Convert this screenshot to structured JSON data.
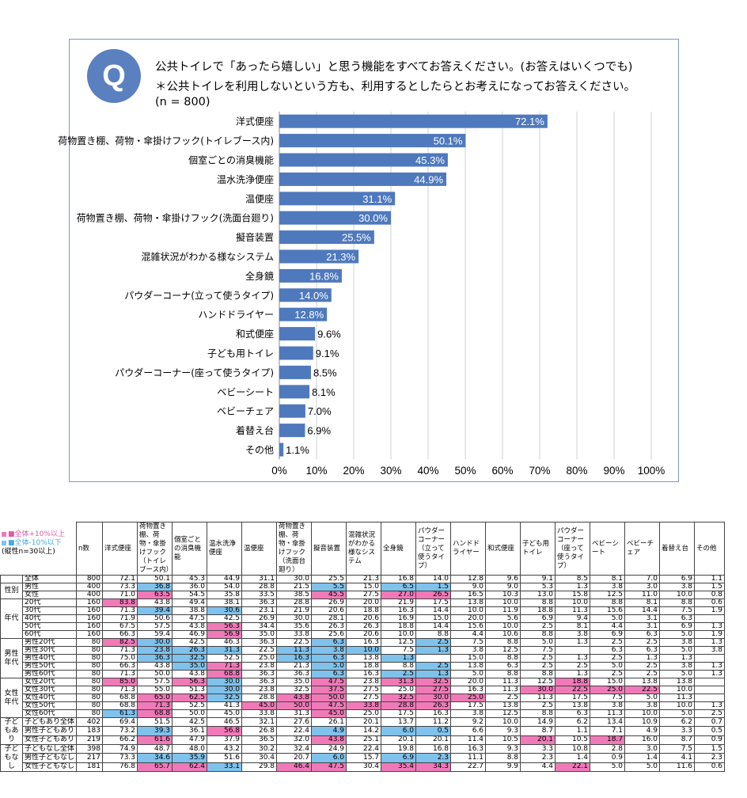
{
  "question": {
    "badge": "Q",
    "line1": "公共トイレで「あったら嬉しい」と思う機能をすべてお答えください。(お答えはいくつでも)",
    "line2": "＊公共トイレを利用しないという方も、利用するとしたらとお考えになってお答えください。",
    "line3": "(n = 800)"
  },
  "chart_data": {
    "type": "bar",
    "orientation": "horizontal",
    "categories": [
      "洋式便座",
      "荷物置き棚、荷物・傘掛けフック(トイレブース内)",
      "個室ごとの消臭機能",
      "温水洗浄便座",
      "温便座",
      "荷物置き棚、荷物・傘掛けフック(洗面台廻り)",
      "擬音装置",
      "混雑状況がわかる様なシステム",
      "全身鏡",
      "パウダーコーナ(立って使うタイプ)",
      "ハンドドライヤー",
      "和式便座",
      "子ども用トイレ",
      "パウダーコーナー(座って使うタイプ)",
      "ベビーシート",
      "ベビーチェア",
      "着替え台",
      "その他"
    ],
    "values": [
      72.1,
      50.1,
      45.3,
      44.9,
      31.1,
      30.0,
      25.5,
      21.3,
      16.8,
      14.0,
      12.8,
      9.6,
      9.1,
      8.5,
      8.1,
      7.0,
      6.9,
      1.1
    ],
    "value_labels": [
      "72.1%",
      "50.1%",
      "45.3%",
      "44.9%",
      "31.1%",
      "30.0%",
      "25.5%",
      "21.3%",
      "16.8%",
      "14.0%",
      "12.8%",
      "9.6%",
      "9.1%",
      "8.5%",
      "8.1%",
      "7.0%",
      "6.9%",
      "1.1%"
    ],
    "xlim": [
      0,
      100
    ],
    "xticks": [
      "0%",
      "10%",
      "20%",
      "30%",
      "40%",
      "50%",
      "60%",
      "70%",
      "80%",
      "90%",
      "100%"
    ],
    "bar_color": "#4f79bd",
    "grid": true
  },
  "table": {
    "legend": [
      "■全体+10%以上",
      "■全体-10%以下",
      "(縦性n=30以上)"
    ],
    "legend_colors": [
      "#f07ab8",
      "#7fc2ec"
    ],
    "headers": [
      "n数",
      "洋式便座",
      "荷物置き棚、荷物・傘掛けフック（トイレブース内）",
      "個室ごとの消臭機能",
      "温水洗浄便座",
      "温便座",
      "荷物置き棚、荷物・傘掛けフック（洗面台廻り）",
      "擬音装置",
      "混雑状況がわかる様なシステム",
      "全身鏡",
      "パウダーコーナー（立って使うタイプ）",
      "ハンドドライヤー",
      "和式便座",
      "子ども用トイレ",
      "パウダーコーナー（座って使うタイプ）",
      "ベビーシート",
      "ベビーチェア",
      "着替え台",
      "その他"
    ],
    "rows": [
      {
        "group": "",
        "label": "全体",
        "cells": [
          "800",
          "72.1",
          "50.1",
          "45.3",
          "44.9",
          "31.1",
          "30.0",
          "25.5",
          "21.3",
          "16.8",
          "14.0",
          "12.8",
          "9.6",
          "9.1",
          "8.5",
          "8.1",
          "7.0",
          "6.9",
          "1.1"
        ],
        "hl": {}
      },
      {
        "group": "性別",
        "label": "男性",
        "cells": [
          "400",
          "73.3",
          "36.8",
          "36.0",
          "54.0",
          "28.8",
          "21.5",
          "5.5",
          "15.0",
          "6.5",
          "1.5",
          "9.0",
          "9.0",
          "5.3",
          "1.3",
          "3.8",
          "3.0",
          "3.8",
          "1.5"
        ],
        "hl": {
          "2": "lo",
          "7": "lo",
          "9": "lo",
          "10": "lo"
        }
      },
      {
        "group": "",
        "label": "女性",
        "cells": [
          "400",
          "71.0",
          "63.5",
          "54.5",
          "35.8",
          "33.5",
          "38.5",
          "45.5",
          "27.5",
          "27.0",
          "26.5",
          "16.5",
          "10.3",
          "13.0",
          "15.8",
          "12.5",
          "11.0",
          "10.0",
          "0.8"
        ],
        "hl": {
          "2": "hi",
          "7": "hi",
          "9": "hi",
          "10": "hi"
        }
      },
      {
        "group": "年代",
        "label": "20代",
        "cells": [
          "160",
          "83.8",
          "43.8",
          "49.4",
          "38.1",
          "36.3",
          "28.8",
          "26.9",
          "20.0",
          "21.9",
          "17.5",
          "13.8",
          "10.0",
          "8.8",
          "10.0",
          "8.8",
          "8.1",
          "8.8",
          "0.6"
        ],
        "hl": {
          "1": "hi"
        }
      },
      {
        "group": "",
        "label": "30代",
        "cells": [
          "160",
          "71.3",
          "39.4",
          "38.8",
          "30.6",
          "23.1",
          "21.9",
          "20.6",
          "18.8",
          "16.3",
          "14.4",
          "10.0",
          "11.9",
          "18.8",
          "11.3",
          "15.6",
          "14.4",
          "7.5",
          "1.9"
        ],
        "hl": {
          "2": "lo",
          "4": "lo"
        }
      },
      {
        "group": "",
        "label": "40代",
        "cells": [
          "160",
          "71.9",
          "50.6",
          "47.5",
          "42.5",
          "26.9",
          "30.0",
          "28.1",
          "20.6",
          "16.9",
          "15.0",
          "20.0",
          "5.6",
          "6.9",
          "9.4",
          "5.0",
          "3.1",
          "6.3",
          ""
        ],
        "hl": {}
      },
      {
        "group": "",
        "label": "50代",
        "cells": [
          "160",
          "67.5",
          "57.5",
          "43.8",
          "56.3",
          "34.4",
          "35.6",
          "26.3",
          "26.3",
          "18.8",
          "14.4",
          "15.6",
          "10.0",
          "2.5",
          "8.1",
          "4.4",
          "3.1",
          "6.9",
          "1.3"
        ],
        "hl": {
          "4": "hi"
        }
      },
      {
        "group": "",
        "label": "60代",
        "cells": [
          "160",
          "66.3",
          "59.4",
          "46.9",
          "56.9",
          "35.0",
          "33.8",
          "25.6",
          "20.6",
          "10.0",
          "8.8",
          "4.4",
          "10.6",
          "8.8",
          "3.8",
          "6.9",
          "6.3",
          "5.0",
          "1.9"
        ],
        "hl": {
          "4": "hi"
        }
      },
      {
        "group": "男性年代",
        "label": "男性20代",
        "cells": [
          "80",
          "82.5",
          "30.0",
          "42.5",
          "46.3",
          "36.3",
          "22.5",
          "6.3",
          "16.3",
          "12.5",
          "2.5",
          "7.5",
          "8.8",
          "5.0",
          "1.3",
          "2.5",
          "2.5",
          "3.8",
          "1.3"
        ],
        "hl": {
          "1": "hi",
          "2": "lo",
          "7": "lo",
          "10": "lo"
        }
      },
      {
        "group": "",
        "label": "男性30代",
        "cells": [
          "80",
          "71.3",
          "23.8",
          "26.3",
          "31.3",
          "22.5",
          "11.3",
          "3.8",
          "10.0",
          "7.5",
          "1.3",
          "3.8",
          "12.5",
          "7.5",
          "",
          "6.3",
          "6.3",
          "5.0",
          "3.8"
        ],
        "hl": {
          "2": "lo",
          "3": "lo",
          "4": "lo",
          "6": "lo",
          "7": "lo",
          "8": "lo",
          "10": "lo"
        }
      },
      {
        "group": "",
        "label": "男性40代",
        "cells": [
          "80",
          "75.0",
          "36.3",
          "32.5",
          "52.5",
          "25.0",
          "16.3",
          "6.3",
          "13.8",
          "1.3",
          "",
          "15.0",
          "8.8",
          "2.5",
          "1.3",
          "2.5",
          "1.3",
          "1.3",
          ""
        ],
        "hl": {
          "2": "lo",
          "3": "lo",
          "6": "lo",
          "7": "lo",
          "9": "lo"
        }
      },
      {
        "group": "",
        "label": "男性50代",
        "cells": [
          "80",
          "66.3",
          "43.8",
          "35.0",
          "71.3",
          "23.8",
          "21.3",
          "5.0",
          "18.8",
          "8.8",
          "2.5",
          "13.8",
          "6.3",
          "2.5",
          "2.5",
          "5.0",
          "2.5",
          "3.8",
          "1.3"
        ],
        "hl": {
          "3": "lo",
          "4": "hi",
          "7": "lo",
          "10": "lo"
        }
      },
      {
        "group": "",
        "label": "男性60代",
        "cells": [
          "80",
          "71.3",
          "50.0",
          "43.8",
          "68.8",
          "36.3",
          "36.3",
          "6.3",
          "16.3",
          "2.5",
          "1.3",
          "5.0",
          "8.8",
          "8.8",
          "1.3",
          "2.5",
          "2.5",
          "5.0",
          "1.3"
        ],
        "hl": {
          "4": "hi",
          "7": "lo",
          "9": "lo",
          "10": "lo"
        }
      },
      {
        "group": "女性年代",
        "label": "女性20代",
        "cells": [
          "80",
          "85.0",
          "57.5",
          "56.3",
          "30.0",
          "36.3",
          "35.0",
          "47.5",
          "23.8",
          "31.3",
          "32.5",
          "20.0",
          "11.3",
          "12.5",
          "18.8",
          "15.0",
          "13.8",
          "13.8",
          ""
        ],
        "hl": {
          "1": "hi",
          "3": "hi",
          "4": "lo",
          "7": "hi",
          "9": "hi",
          "10": "hi",
          "14": "hi"
        }
      },
      {
        "group": "",
        "label": "女性30代",
        "cells": [
          "80",
          "71.3",
          "55.0",
          "51.3",
          "30.0",
          "23.8",
          "32.5",
          "37.5",
          "27.5",
          "25.0",
          "27.5",
          "16.3",
          "11.3",
          "30.0",
          "22.5",
          "25.0",
          "22.5",
          "10.0",
          ""
        ],
        "hl": {
          "4": "lo",
          "7": "hi",
          "10": "hi",
          "13": "hi",
          "14": "hi",
          "15": "hi",
          "16": "hi"
        }
      },
      {
        "group": "",
        "label": "女性40代",
        "cells": [
          "80",
          "68.8",
          "65.0",
          "62.5",
          "32.5",
          "28.8",
          "43.8",
          "50.0",
          "27.5",
          "32.5",
          "30.0",
          "25.0",
          "2.5",
          "11.3",
          "17.5",
          "7.5",
          "5.0",
          "11.3",
          ""
        ],
        "hl": {
          "2": "hi",
          "3": "hi",
          "4": "lo",
          "6": "hi",
          "7": "hi",
          "9": "hi",
          "10": "hi",
          "11": "hi"
        }
      },
      {
        "group": "",
        "label": "女性50代",
        "cells": [
          "80",
          "68.8",
          "71.3",
          "52.5",
          "41.3",
          "45.0",
          "50.0",
          "47.5",
          "33.8",
          "28.8",
          "26.3",
          "17.5",
          "13.8",
          "2.5",
          "13.8",
          "3.8",
          "3.8",
          "10.0",
          "1.3"
        ],
        "hl": {
          "2": "hi",
          "5": "hi",
          "6": "hi",
          "7": "hi",
          "8": "hi",
          "9": "hi",
          "10": "hi"
        }
      },
      {
        "group": "",
        "label": "女性60代",
        "cells": [
          "80",
          "61.3",
          "68.8",
          "50.0",
          "45.0",
          "33.8",
          "31.3",
          "45.0",
          "25.0",
          "17.5",
          "16.3",
          "3.8",
          "12.5",
          "8.8",
          "6.3",
          "11.3",
          "10.0",
          "5.0",
          "2.5"
        ],
        "hl": {
          "1": "lo",
          "2": "hi",
          "7": "hi"
        }
      },
      {
        "group": "子どもあり",
        "label": "子どもあり全体",
        "cells": [
          "402",
          "69.4",
          "51.5",
          "42.5",
          "46.5",
          "32.1",
          "27.6",
          "26.1",
          "20.1",
          "13.7",
          "11.2",
          "9.2",
          "10.0",
          "14.9",
          "6.2",
          "13.4",
          "10.9",
          "6.2",
          "0.7"
        ],
        "hl": {}
      },
      {
        "group": "",
        "label": "男性子どもあり",
        "cells": [
          "183",
          "73.2",
          "39.3",
          "36.1",
          "56.8",
          "26.8",
          "22.4",
          "4.9",
          "14.2",
          "6.0",
          "0.5",
          "6.6",
          "9.3",
          "8.7",
          "1.1",
          "7.1",
          "4.9",
          "3.3",
          "0.5"
        ],
        "hl": {
          "2": "lo",
          "4": "hi",
          "7": "lo",
          "9": "lo",
          "10": "lo"
        }
      },
      {
        "group": "",
        "label": "女性子どもあり",
        "cells": [
          "219",
          "66.2",
          "61.6",
          "47.9",
          "37.9",
          "36.5",
          "32.0",
          "43.8",
          "25.1",
          "20.1",
          "20.1",
          "11.4",
          "10.5",
          "20.1",
          "10.5",
          "18.7",
          "16.0",
          "8.7",
          "0.9"
        ],
        "hl": {
          "2": "hi",
          "7": "hi",
          "13": "hi",
          "15": "hi"
        }
      },
      {
        "group": "子どもなし",
        "label": "子どもなし全体",
        "cells": [
          "398",
          "74.9",
          "48.7",
          "48.0",
          "43.2",
          "30.2",
          "32.4",
          "24.9",
          "22.4",
          "19.8",
          "16.8",
          "16.3",
          "9.3",
          "3.3",
          "10.8",
          "2.8",
          "3.0",
          "7.5",
          "1.5"
        ],
        "hl": {}
      },
      {
        "group": "",
        "label": "男性子どもなし",
        "cells": [
          "217",
          "73.3",
          "34.6",
          "35.9",
          "51.6",
          "30.4",
          "20.7",
          "6.0",
          "15.7",
          "6.9",
          "2.3",
          "11.1",
          "8.8",
          "2.3",
          "1.4",
          "0.9",
          "1.4",
          "4.1",
          "2.3"
        ],
        "hl": {
          "2": "lo",
          "3": "lo",
          "7": "lo",
          "9": "lo",
          "10": "lo"
        }
      },
      {
        "group": "",
        "label": "女性子どもなし",
        "cells": [
          "181",
          "76.8",
          "65.7",
          "62.4",
          "33.1",
          "29.8",
          "46.4",
          "47.5",
          "30.4",
          "35.4",
          "34.3",
          "22.7",
          "9.9",
          "4.4",
          "22.1",
          "5.0",
          "5.0",
          "11.6",
          "0.6"
        ],
        "hl": {
          "2": "hi",
          "3": "hi",
          "4": "lo",
          "6": "hi",
          "7": "hi",
          "9": "hi",
          "10": "hi",
          "14": "hi"
        }
      }
    ]
  }
}
